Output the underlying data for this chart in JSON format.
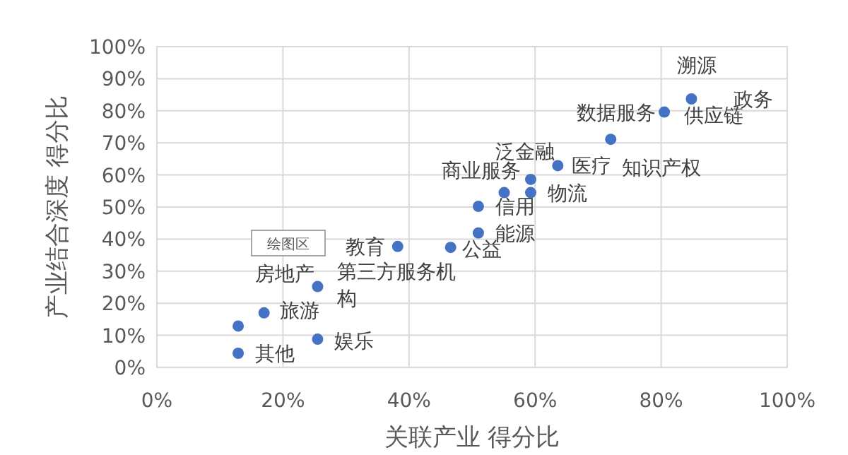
{
  "chart_data": {
    "type": "scatter",
    "xlabel": "关联产业 得分比",
    "ylabel": "产业结合深度 得分比",
    "x": [
      84.8,
      80.5,
      72.0,
      63.6,
      59.3,
      59.3,
      55.1,
      51.0,
      51.0,
      38.2,
      46.6,
      25.5,
      17.0,
      12.9,
      25.5,
      12.9
    ],
    "series": [
      {
        "color": "#4472c4",
        "values": [
          83.7,
          79.6,
          71.1,
          62.9,
          58.6,
          54.5,
          54.5,
          50.2,
          41.9,
          37.7,
          37.4,
          25.2,
          17.0,
          12.9,
          8.8,
          4.4
        ]
      }
    ],
    "xlim": [
      0,
      100
    ],
    "ylim": [
      0,
      100
    ],
    "xticks": [
      {
        "value": 0,
        "label": "0%"
      },
      {
        "value": 20,
        "label": "20%"
      },
      {
        "value": 40,
        "label": "40%"
      },
      {
        "value": 60,
        "label": "60%"
      },
      {
        "value": 80,
        "label": "80%"
      },
      {
        "value": 100,
        "label": "100%"
      }
    ],
    "yticks": [
      {
        "value": 0,
        "label": "0%"
      },
      {
        "value": 10,
        "label": "10%"
      },
      {
        "value": 20,
        "label": "20%"
      },
      {
        "value": 30,
        "label": "30%"
      },
      {
        "value": 40,
        "label": "40%"
      },
      {
        "value": 50,
        "label": "50%"
      },
      {
        "value": 60,
        "label": "60%"
      },
      {
        "value": 70,
        "label": "70%"
      },
      {
        "value": 80,
        "label": "80%"
      },
      {
        "value": 90,
        "label": "90%"
      },
      {
        "value": 100,
        "label": "100%"
      }
    ],
    "grid": true,
    "marker": "circle",
    "annotations": [
      {
        "text": "溯源",
        "x": 84.8,
        "y": 83.7
      },
      {
        "text": "政务",
        "x": 84.8,
        "y": 83.7
      },
      {
        "text": "数据服务",
        "x": 80.5,
        "y": 79.6
      },
      {
        "text": "供应链",
        "x": 80.5,
        "y": 79.6
      },
      {
        "text": "知识产权",
        "x": 72.0,
        "y": 71.1
      },
      {
        "text": "医疗",
        "x": 63.6,
        "y": 62.9
      },
      {
        "text": "泛金融",
        "x": 59.3,
        "y": 58.6
      },
      {
        "text": "物流",
        "x": 59.3,
        "y": 54.5
      },
      {
        "text": "商业服务",
        "x": 55.1,
        "y": 54.5
      },
      {
        "text": "信用",
        "x": 51.0,
        "y": 50.2
      },
      {
        "text": "能源",
        "x": 51.0,
        "y": 41.9
      },
      {
        "text": "教育",
        "x": 38.2,
        "y": 37.7
      },
      {
        "text": "公益",
        "x": 46.6,
        "y": 37.4
      },
      {
        "text": "第三方服务机构",
        "x": 25.5,
        "y": 25.2
      },
      {
        "text": "旅游",
        "x": 17.0,
        "y": 17.0
      },
      {
        "text": "房地产",
        "x": 12.9,
        "y": 12.9
      },
      {
        "text": "娱乐",
        "x": 25.5,
        "y": 8.8
      },
      {
        "text": "其他",
        "x": 12.9,
        "y": 4.4
      },
      "绘图区"
    ]
  }
}
